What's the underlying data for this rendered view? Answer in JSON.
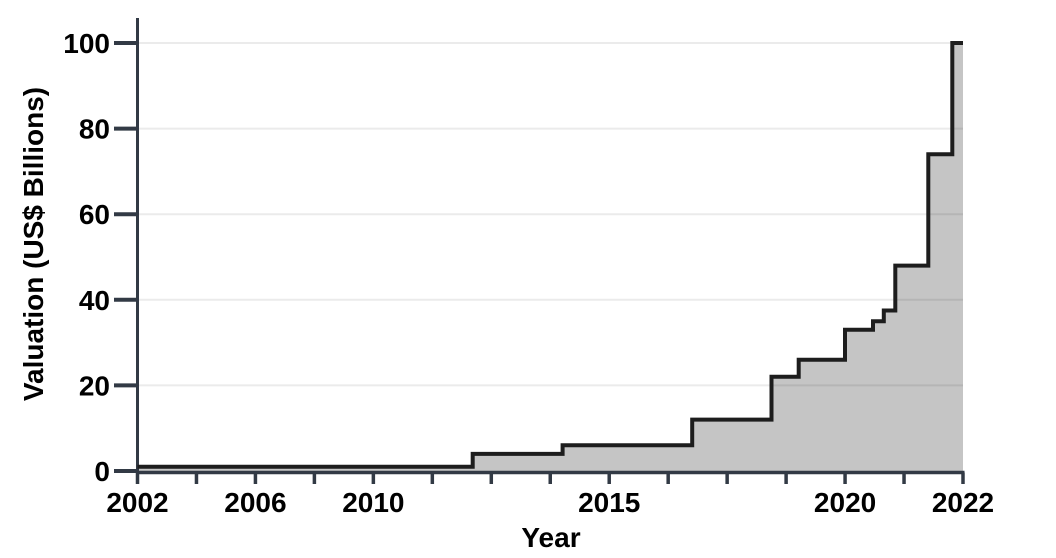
{
  "page": {
    "background": "#ffffff"
  },
  "chart_data": {
    "type": "area",
    "variant": "step",
    "title": "",
    "xlabel": "Year",
    "ylabel": "Valuation (US$ Billions)",
    "ylim": [
      0,
      100
    ],
    "y_ticks": [
      0,
      20,
      40,
      60,
      80,
      100
    ],
    "grid": "horizontal-light",
    "legend": "none",
    "x_axis": {
      "tick_count": 15,
      "labeled_ticks": [
        {
          "index": 0,
          "label": "2002"
        },
        {
          "index": 2,
          "label": "2006"
        },
        {
          "index": 4,
          "label": "2010"
        },
        {
          "index": 8,
          "label": "2015"
        },
        {
          "index": 12,
          "label": "2020"
        },
        {
          "index": 14,
          "label": "2022"
        }
      ]
    },
    "series": [
      {
        "name": "Valuation (US$ Billions)",
        "steps": [
          {
            "x_frac": 0.0,
            "approx_year": 2002,
            "value": 1
          },
          {
            "x_frac": 0.406,
            "approx_year": 2012.1,
            "value": 4
          },
          {
            "x_frac": 0.515,
            "approx_year": 2014,
            "value": 6
          },
          {
            "x_frac": 0.672,
            "approx_year": 2016.8,
            "value": 12
          },
          {
            "x_frac": 0.768,
            "approx_year": 2018.5,
            "value": 22
          },
          {
            "x_frac": 0.801,
            "approx_year": 2019,
            "value": 26
          },
          {
            "x_frac": 0.857,
            "approx_year": 2020,
            "value": 33
          },
          {
            "x_frac": 0.891,
            "approx_year": 2020.5,
            "value": 35
          },
          {
            "x_frac": 0.904,
            "approx_year": 2020.7,
            "value": 37.5
          },
          {
            "x_frac": 0.918,
            "approx_year": 2020.9,
            "value": 48
          },
          {
            "x_frac": 0.958,
            "approx_year": 2021.4,
            "value": 74
          },
          {
            "x_frac": 0.987,
            "approx_year": 2021.8,
            "value": 100
          }
        ],
        "end_x_frac": 1.0
      }
    ]
  },
  "colors": {
    "fill": "#c5c5c5",
    "line": "#1d1d1d",
    "axis": "#323a45",
    "grid": "rgba(0,0,0,0.08)",
    "label": "#000000"
  }
}
